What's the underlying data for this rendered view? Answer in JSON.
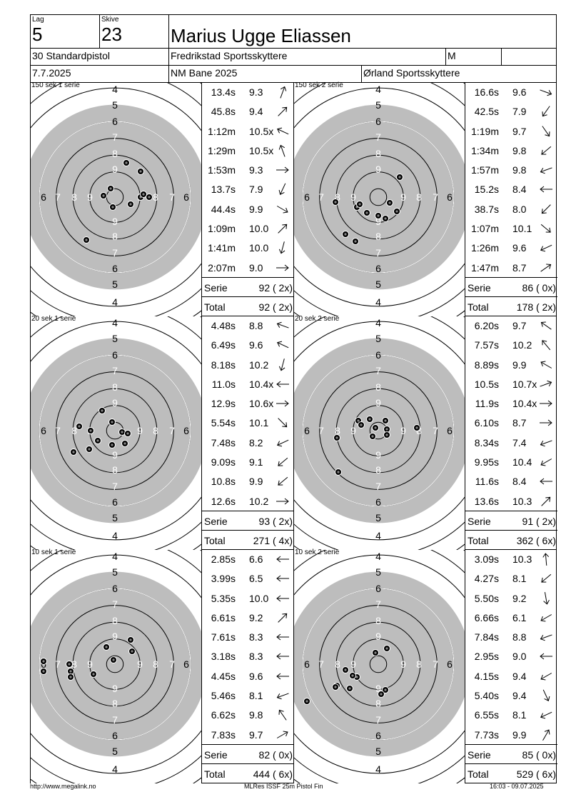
{
  "header": {
    "lag_label": "Lag",
    "lag_value": "5",
    "skive_label": "Skive",
    "skive_value": "23",
    "name": "Marius Ugge Eliassen",
    "class": "30 Standardpistol",
    "club": "Fredrikstad Sportsskyttere",
    "gender": "M",
    "date": "7.7.2025",
    "event": "NM Bane 2025",
    "host": "Ørland Sportsskyttere"
  },
  "panels": [
    {
      "title": "150 sek 1 serie",
      "shots": [
        {
          "time": "13.4s",
          "value": "9.3",
          "angle": -70
        },
        {
          "time": "45.8s",
          "value": "9.4",
          "angle": -45
        },
        {
          "time": "1:12m",
          "value": "10.5x",
          "angle": -155
        },
        {
          "time": "1:29m",
          "value": "10.5x",
          "angle": -110
        },
        {
          "time": "1:53m",
          "value": "9.3",
          "angle": 0
        },
        {
          "time": "13.7s",
          "value": "7.9",
          "angle": 115
        },
        {
          "time": "44.4s",
          "value": "9.9",
          "angle": 30
        },
        {
          "time": "1:09m",
          "value": "10.0",
          "angle": -45
        },
        {
          "time": "1:41m",
          "value": "10.0",
          "angle": 105
        },
        {
          "time": "2:07m",
          "value": "9.0",
          "angle": 0
        }
      ],
      "holes": [
        [
          16,
          -48
        ],
        [
          36,
          -36
        ],
        [
          -6,
          -12
        ],
        [
          -16,
          -2
        ],
        [
          -3,
          14
        ],
        [
          22,
          10
        ],
        [
          36,
          0
        ],
        [
          48,
          0
        ],
        [
          40,
          -4
        ],
        [
          -40,
          60
        ]
      ],
      "serie_label": "Serie",
      "serie_value": "92 ( 2x)",
      "total_label": "Total",
      "total_value": "92 ( 2x)"
    },
    {
      "title": "150 sek 2 serie",
      "shots": [
        {
          "time": "16.6s",
          "value": "9.6",
          "angle": 20
        },
        {
          "time": "42.5s",
          "value": "7.9",
          "angle": 125
        },
        {
          "time": "1:19m",
          "value": "9.7",
          "angle": 55
        },
        {
          "time": "1:34m",
          "value": "9.8",
          "angle": 140
        },
        {
          "time": "1:57m",
          "value": "9.8",
          "angle": 160
        },
        {
          "time": "15.2s",
          "value": "8.4",
          "angle": 180
        },
        {
          "time": "38.7s",
          "value": "8.0",
          "angle": 135
        },
        {
          "time": "1:07m",
          "value": "10.1",
          "angle": 40
        },
        {
          "time": "1:26m",
          "value": "9.6",
          "angle": 155
        },
        {
          "time": "1:47m",
          "value": "8.7",
          "angle": -35
        }
      ],
      "holes": [
        [
          -60,
          7
        ],
        [
          -30,
          14
        ],
        [
          -26,
          10
        ],
        [
          -16,
          22
        ],
        [
          0,
          26
        ],
        [
          10,
          30
        ],
        [
          30,
          -28
        ],
        [
          16,
          8
        ],
        [
          26,
          20
        ],
        [
          -46,
          52
        ],
        [
          -32,
          62
        ]
      ],
      "serie_label": "Serie",
      "serie_value": "86 ( 0x)",
      "total_label": "Total",
      "total_value": "178 ( 2x)"
    },
    {
      "title": "20 sek 1 serie",
      "shots": [
        {
          "time": "4.48s",
          "value": "8.8",
          "angle": -160
        },
        {
          "time": "6.49s",
          "value": "9.6",
          "angle": -155
        },
        {
          "time": "8.18s",
          "value": "10.2",
          "angle": 105
        },
        {
          "time": "11.0s",
          "value": "10.4x",
          "angle": 180
        },
        {
          "time": "12.9s",
          "value": "10.6x",
          "angle": 0
        },
        {
          "time": "5.54s",
          "value": "10.1",
          "angle": 45
        },
        {
          "time": "7.48s",
          "value": "8.2",
          "angle": 155
        },
        {
          "time": "9.09s",
          "value": "9.1",
          "angle": 140
        },
        {
          "time": "10.8s",
          "value": "9.9",
          "angle": 140
        },
        {
          "time": "12.6s",
          "value": "10.2",
          "angle": 0
        }
      ],
      "holes": [
        [
          -18,
          -28
        ],
        [
          -4,
          -12
        ],
        [
          -50,
          -6
        ],
        [
          -34,
          0
        ],
        [
          10,
          2
        ],
        [
          18,
          4
        ],
        [
          -24,
          14
        ],
        [
          -4,
          20
        ],
        [
          14,
          18
        ],
        [
          -36,
          26
        ],
        [
          -58,
          30
        ]
      ],
      "serie_label": "Serie",
      "serie_value": "93 ( 2x)",
      "total_label": "Total",
      "total_value": "271 ( 4x)"
    },
    {
      "title": "20 sek 2 serie",
      "shots": [
        {
          "time": "6.20s",
          "value": "9.7",
          "angle": -145
        },
        {
          "time": "7.57s",
          "value": "10.2",
          "angle": -130
        },
        {
          "time": "8.89s",
          "value": "9.9",
          "angle": -150
        },
        {
          "time": "10.5s",
          "value": "10.7x",
          "angle": -20
        },
        {
          "time": "11.9s",
          "value": "10.4x",
          "angle": 0
        },
        {
          "time": "6.10s",
          "value": "8.7",
          "angle": 0
        },
        {
          "time": "8.34s",
          "value": "7.4",
          "angle": 160
        },
        {
          "time": "9.95s",
          "value": "10.4",
          "angle": 150
        },
        {
          "time": "11.6s",
          "value": "8.4",
          "angle": 180
        },
        {
          "time": "13.6s",
          "value": "10.3",
          "angle": -45
        }
      ],
      "holes": [
        [
          -28,
          -14
        ],
        [
          -12,
          -16
        ],
        [
          10,
          -14
        ],
        [
          -24,
          -8
        ],
        [
          -4,
          -4
        ],
        [
          12,
          -2
        ],
        [
          -8,
          8
        ],
        [
          12,
          6
        ],
        [
          54,
          -4
        ],
        [
          -58,
          10
        ],
        [
          -56,
          58
        ]
      ],
      "serie_label": "Serie",
      "serie_value": "91 ( 2x)",
      "total_label": "Total",
      "total_value": "362 ( 6x)"
    },
    {
      "title": "10 sek 1 serie",
      "shots": [
        {
          "time": "2.85s",
          "value": "6.6",
          "angle": 180
        },
        {
          "time": "3.99s",
          "value": "6.5",
          "angle": 180
        },
        {
          "time": "5.35s",
          "value": "10.0",
          "angle": 180
        },
        {
          "time": "6.61s",
          "value": "9.2",
          "angle": -45
        },
        {
          "time": "7.61s",
          "value": "8.3",
          "angle": 180
        },
        {
          "time": "3.18s",
          "value": "8.3",
          "angle": 180
        },
        {
          "time": "4.45s",
          "value": "9.6",
          "angle": 180
        },
        {
          "time": "5.46s",
          "value": "8.1",
          "angle": 160
        },
        {
          "time": "6.62s",
          "value": "9.8",
          "angle": -125
        },
        {
          "time": "7.83s",
          "value": "9.7",
          "angle": -30
        }
      ],
      "holes": [
        [
          -100,
          -4
        ],
        [
          -100,
          10
        ],
        [
          -64,
          0
        ],
        [
          -62,
          10
        ],
        [
          -62,
          18
        ],
        [
          -12,
          -24
        ],
        [
          22,
          -34
        ],
        [
          24,
          -18
        ],
        [
          -30,
          14
        ],
        [
          -2,
          -6
        ]
      ],
      "serie_label": "Serie",
      "serie_value": "82 ( 0x)",
      "total_label": "Total",
      "total_value": "444 ( 6x)"
    },
    {
      "title": "10 sek 2 serie",
      "shots": [
        {
          "time": "3.09s",
          "value": "10.3",
          "angle": -95
        },
        {
          "time": "4.27s",
          "value": "8.1",
          "angle": 140
        },
        {
          "time": "5.50s",
          "value": "9.2",
          "angle": 80
        },
        {
          "time": "6.66s",
          "value": "6.1",
          "angle": 150
        },
        {
          "time": "7.84s",
          "value": "8.8",
          "angle": 160
        },
        {
          "time": "2.95s",
          "value": "9.0",
          "angle": 180
        },
        {
          "time": "4.15s",
          "value": "9.4",
          "angle": 150
        },
        {
          "time": "5.40s",
          "value": "9.4",
          "angle": 65
        },
        {
          "time": "6.55s",
          "value": "8.1",
          "angle": 155
        },
        {
          "time": "7.73s",
          "value": "9.9",
          "angle": -60
        }
      ],
      "holes": [
        [
          -4,
          -16
        ],
        [
          12,
          -22
        ],
        [
          -46,
          8
        ],
        [
          -30,
          18
        ],
        [
          -58,
          30
        ],
        [
          -40,
          34
        ],
        [
          -60,
          32
        ],
        [
          10,
          36
        ],
        [
          4,
          42
        ],
        [
          -100,
          52
        ],
        [
          -36,
          16
        ]
      ],
      "serie_label": "Serie",
      "serie_value": "85 ( 0x)",
      "total_label": "Total",
      "total_value": "529 ( 6x)"
    }
  ],
  "target": {
    "top_numbers": [
      "4",
      "5",
      "6",
      "7",
      "8",
      "9"
    ],
    "side_numbers": [
      "6",
      "7",
      "8",
      "9"
    ],
    "bottom_numbers": [
      "9",
      "8",
      "7",
      "6",
      "5",
      "4"
    ]
  },
  "footer": {
    "left": "http://www.megalink.no",
    "center": "MLRes ISSF 25m Pistol Fin",
    "right": "16:03 - 09.07.2025"
  },
  "colors": {
    "black_zone": "#bdbdbd",
    "ring": "#000000",
    "paper": "#ffffff"
  }
}
